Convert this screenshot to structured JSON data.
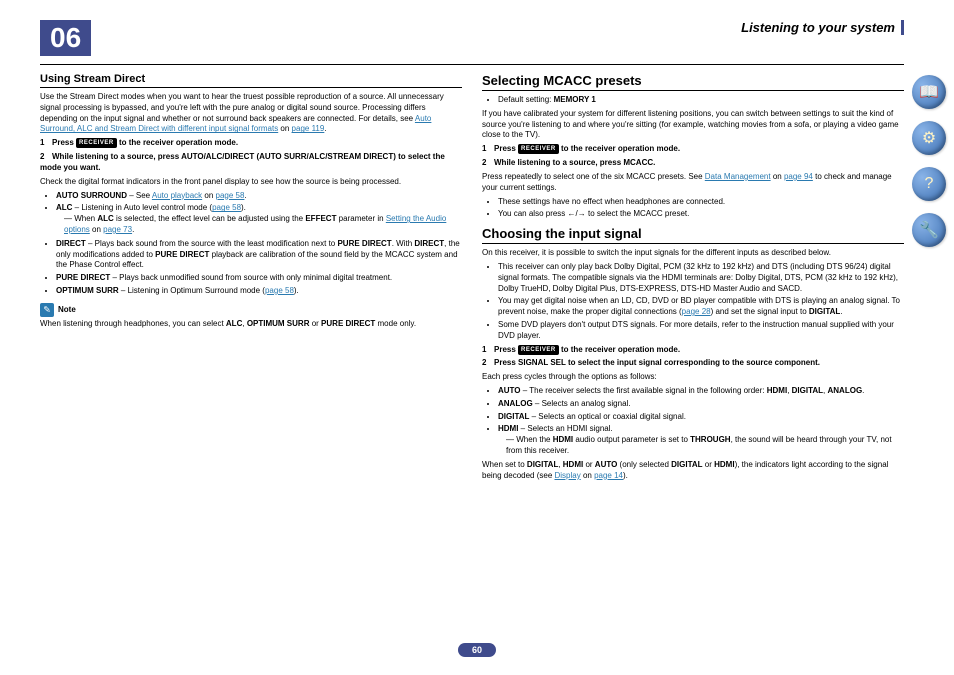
{
  "chapter": {
    "number": "06",
    "title": "Listening to your system"
  },
  "page_number": "60",
  "left": {
    "h3": "Using Stream Direct",
    "intro": "Use the Stream Direct modes when you want to hear the truest possible reproduction of a source. All unnecessary signal processing is bypassed, and you're left with the pure analog or digital sound source.\nProcessing differs depending on the input signal and whether or not surround back speakers are connected. For details, see ",
    "intro_link": "Auto Surround, ALC and Stream Direct with different input signal formats",
    "intro_link_suffix": " on ",
    "intro_page": "page 119",
    "step1_pre": "Press ",
    "receiver": "RECEIVER",
    "step1_post": " to the receiver operation mode.",
    "step2": "While listening to a source, press AUTO/ALC/DIRECT (AUTO SURR/ALC/STREAM DIRECT) to select the mode you want.",
    "check": "Check the digital format indicators in the front panel display to see how the source is being processed.",
    "bullets": {
      "auto_surround_pre": "AUTO SURROUND",
      "auto_surround_mid": " – See ",
      "auto_surround_link": "Auto playback",
      "auto_surround_post": " on ",
      "auto_surround_page": "page 58",
      "alc_pre": "ALC",
      "alc_post": " – Listening in Auto level control mode (",
      "alc_page": "page 58",
      "alc_sub_pre": "When ",
      "alc_sub_b": "ALC",
      "alc_sub_mid": " is selected, the effect level can be adjusted using the ",
      "alc_sub_b2": "EFFECT",
      "alc_sub_mid2": " parameter in ",
      "alc_sub_link": "Setting the Audio options",
      "alc_sub_post": " on ",
      "alc_sub_page": "page 73",
      "direct_pre": "DIRECT",
      "direct_mid": " – Plays back sound from the source with the least modification next to ",
      "direct_b2": "PURE DIRECT",
      "direct_mid2": ". With ",
      "direct_b3": "DIRECT",
      "direct_post": ", the only modifications added to ",
      "direct_b4": "PURE DIRECT",
      "direct_end": " playback are calibration of the sound field by the MCACC system and the Phase Control effect.",
      "pure_pre": "PURE DIRECT",
      "pure_post": " – Plays back unmodified sound from source with only minimal digital treatment.",
      "opt_pre": "OPTIMUM SURR",
      "opt_post": " – Listening in Optimum Surround mode (",
      "opt_page": "page 58"
    },
    "note_label": "Note",
    "note_text_pre": "When listening through headphones, you can select ",
    "note_b1": "ALC",
    "note_mid1": ", ",
    "note_b2": "OPTIMUM SURR",
    "note_mid2": " or ",
    "note_b3": "PURE DIRECT",
    "note_post": " mode only."
  },
  "right": {
    "mcacc": {
      "title": "Selecting MCACC presets",
      "default_pre": "Default setting: ",
      "default_b": "MEMORY 1",
      "intro": "If you have calibrated your system for different listening positions, you can switch between settings to suit the kind of source you're listening to and where you're sitting (for example, watching movies from a sofa, or playing a video game close to the TV).",
      "step1_pre": "Press ",
      "step1_post": " to the receiver operation mode.",
      "step2": "While listening to a source, press MCACC.",
      "press_repeat_pre": "Press repeatedly to select one of the six MCACC presets. See ",
      "press_repeat_link": "Data Management",
      "press_repeat_mid": " on ",
      "press_repeat_page": "page 94",
      "press_repeat_post": " to check and manage your current settings.",
      "b1": "These settings have no effect when headphones are connected.",
      "b2_pre": "You can also press ",
      "b2_mid": "/",
      "b2_post": " to select the MCACC preset."
    },
    "input": {
      "title": "Choosing the input signal",
      "intro": "On this receiver, it is possible to switch the input signals for the different inputs as described below.",
      "b1": "This receiver can only play back Dolby Digital, PCM (32 kHz to 192 kHz) and DTS (including DTS 96/24) digital signal formats. The compatible signals via the HDMI terminals are: Dolby Digital, DTS, PCM (32 kHz to 192 kHz), Dolby TrueHD, Dolby Digital Plus, DTS-EXPRESS, DTS-HD Master Audio and SACD.",
      "b2_pre": "You may get digital noise when an LD, CD, DVD or BD player compatible with DTS is playing an analog signal. To prevent noise, make the proper digital connections (",
      "b2_page": "page 28",
      "b2_mid": ") and set the signal input to ",
      "b2_b": "DIGITAL",
      "b3": "Some DVD players don't output DTS signals. For more details, refer to the instruction manual supplied with your DVD player.",
      "step1_pre": "Press ",
      "step1_post": " to the receiver operation mode.",
      "step2": "Press SIGNAL SEL to select the input signal corresponding to the source component.",
      "cycle": "Each press cycles through the options as follows:",
      "auto_pre": "AUTO",
      "auto_post": " – The receiver selects the first available signal in the following order: ",
      "auto_o1": "HDMI",
      "auto_o2": "DIGITAL",
      "auto_o3": "ANALOG",
      "analog_pre": "ANALOG",
      "analog_post": " – Selects an analog signal.",
      "digital_pre": "DIGITAL",
      "digital_post": " – Selects an optical or coaxial digital signal.",
      "hdmi_pre": "HDMI",
      "hdmi_post": " – Selects an HDMI signal.",
      "hdmi_sub_pre": "When the ",
      "hdmi_sub_b1": "HDMI",
      "hdmi_sub_mid": " audio output parameter is set to ",
      "hdmi_sub_b2": "THROUGH",
      "hdmi_sub_post": ", the sound will be heard through your TV, not from this receiver.",
      "when_pre": "When set to ",
      "when_b1": "DIGITAL",
      "when_mid1": ", ",
      "when_b2": "HDMI",
      "when_mid2": " or ",
      "when_b3": "AUTO",
      "when_mid3": " (only selected ",
      "when_b4": "DIGITAL",
      "when_mid4": " or ",
      "when_b5": "HDMI",
      "when_mid5": "), the indicators light according to the signal being decoded (see ",
      "when_link": "Display",
      "when_mid6": " on ",
      "when_page": "page 14",
      "when_post": ")."
    }
  },
  "icons": {
    "i1": "📖",
    "i2": "⚙",
    "i3": "?",
    "i4": "🔧"
  }
}
